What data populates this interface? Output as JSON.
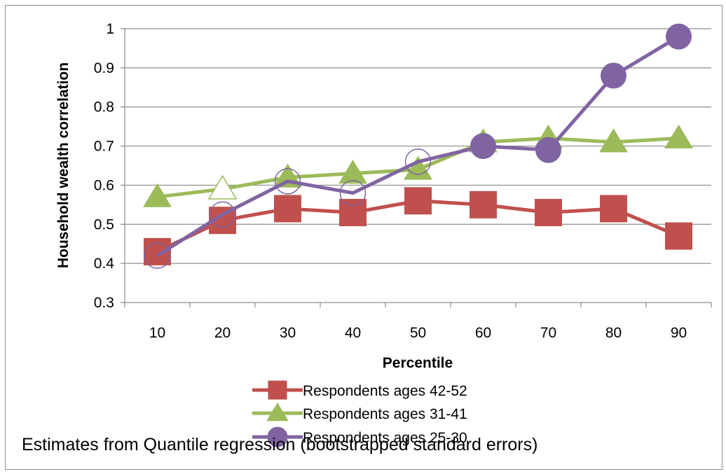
{
  "chart_data": {
    "type": "line",
    "xlabel": "Percentile",
    "ylabel": "Household wealth correlation",
    "categories": [
      "10",
      "20",
      "30",
      "40",
      "50",
      "60",
      "70",
      "80",
      "90"
    ],
    "ylim": [
      0.3,
      1
    ],
    "yticks": [
      "0.3",
      "0.4",
      "0.5",
      "0.6",
      "0.7",
      "0.8",
      "0.9",
      "1"
    ],
    "grid": true,
    "legend_position": "bottom",
    "series": [
      {
        "name": "Respondents ages 42-52",
        "color": "#c0504d",
        "marker": "square",
        "values": [
          0.43,
          0.51,
          0.54,
          0.53,
          0.56,
          0.55,
          0.53,
          0.54,
          0.47
        ],
        "filled": [
          true,
          true,
          true,
          true,
          true,
          true,
          true,
          true,
          true
        ]
      },
      {
        "name": "Respondents ages 31-41",
        "color": "#9bbb59",
        "marker": "triangle",
        "values": [
          0.57,
          0.59,
          0.62,
          0.63,
          0.64,
          0.71,
          0.72,
          0.71,
          0.72
        ],
        "filled": [
          true,
          false,
          true,
          true,
          true,
          true,
          true,
          true,
          true
        ]
      },
      {
        "name": "Respondents ages 25-30",
        "color": "#8064a2",
        "marker": "circle",
        "values": [
          0.42,
          0.525,
          0.61,
          0.58,
          0.66,
          0.7,
          0.69,
          0.88,
          0.98
        ],
        "filled": [
          false,
          false,
          false,
          false,
          false,
          true,
          true,
          true,
          true
        ]
      }
    ],
    "note": "Estimates from Quantile  regression (bootstrapped standard errors)"
  }
}
